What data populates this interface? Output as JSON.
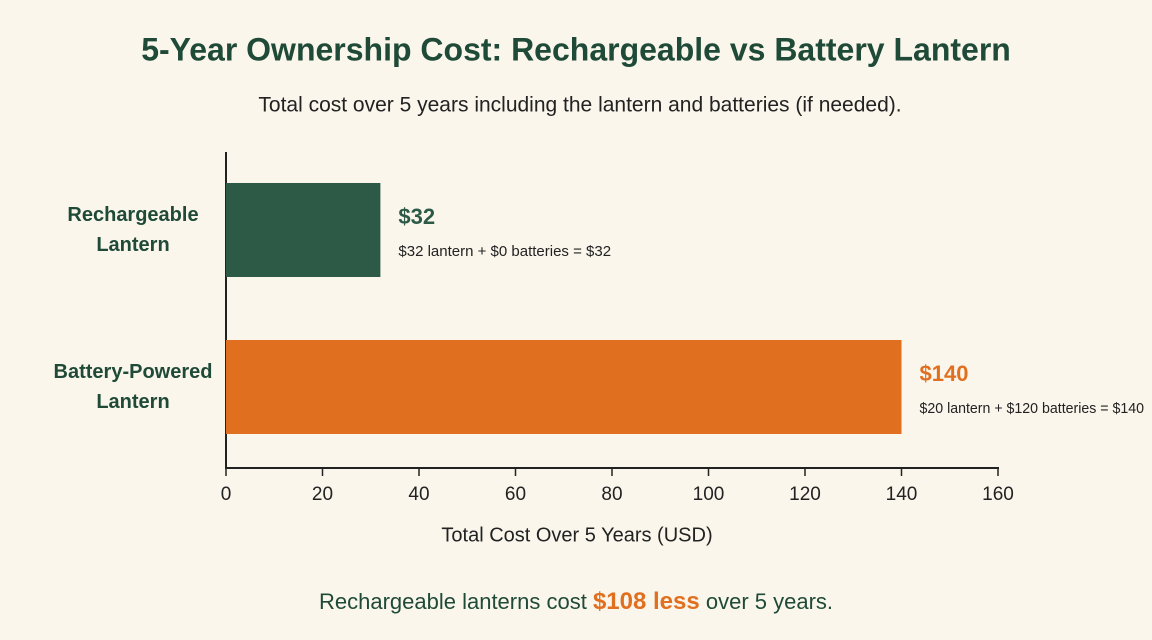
{
  "chart_data": {
    "type": "bar",
    "orientation": "horizontal",
    "title": "5-Year Ownership Cost: Rechargeable vs Battery Lantern",
    "subtitle": "Total cost over 5 years including the lantern and batteries (if needed).",
    "categories": [
      "Rechargeable Lantern",
      "Battery-Powered Lantern"
    ],
    "values": [
      32,
      140
    ],
    "value_labels": [
      "$32",
      "$140"
    ],
    "annotations": [
      "$32 lantern + $0 batteries = $32",
      "$20 lantern + $120 batteries = $140"
    ],
    "colors": [
      "#2d5a47",
      "#e07020"
    ],
    "x_label": "Total Cost Over 5 Years (USD)",
    "xlim": [
      0,
      160
    ],
    "xticks": [
      0,
      20,
      40,
      60,
      80,
      100,
      120,
      140,
      160
    ],
    "footnote": {
      "before": "Rechargeable lanterns cost",
      "highlight": "$108 less",
      "after": "over 5 years."
    }
  }
}
